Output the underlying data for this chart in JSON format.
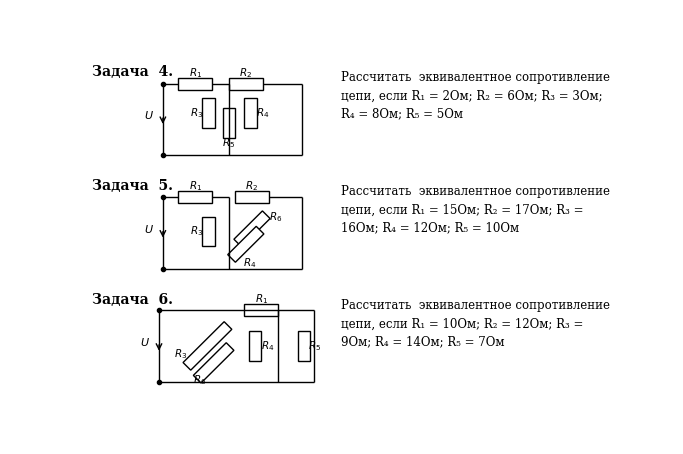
{
  "bg_color": "#ffffff",
  "tasks": [
    {
      "label": "Задача  4.",
      "text_lines": [
        "Рассчитать  эквивалентное сопротивление",
        "цепи, если R₁ = 2Ом; R₂ = 6Ом; R₃ = 3Ом;",
        "R₄ = 8Ом; R₅ = 5Ом"
      ]
    },
    {
      "label": "Задача  5.",
      "text_lines": [
        "Рассчитать  эквивалентное сопротивление",
        "цепи, если R₁ = 15Ом; R₂ = 17Ом; R₃ =",
        "16Ом; R₄ = 12Ом; R₅ = 10Ом"
      ]
    },
    {
      "label": "Задача  6.",
      "text_lines": [
        "Рассчитать  эквивалентное сопротивление",
        "цепи, если R₁ = 10Ом; R₂ = 12Ом; R₃ =",
        "9Ом; R₄ = 14Ом; R₅ = 7Ом"
      ]
    }
  ],
  "label_fontsize": 10,
  "text_fontsize": 8.5,
  "circuit_color": "#000000"
}
